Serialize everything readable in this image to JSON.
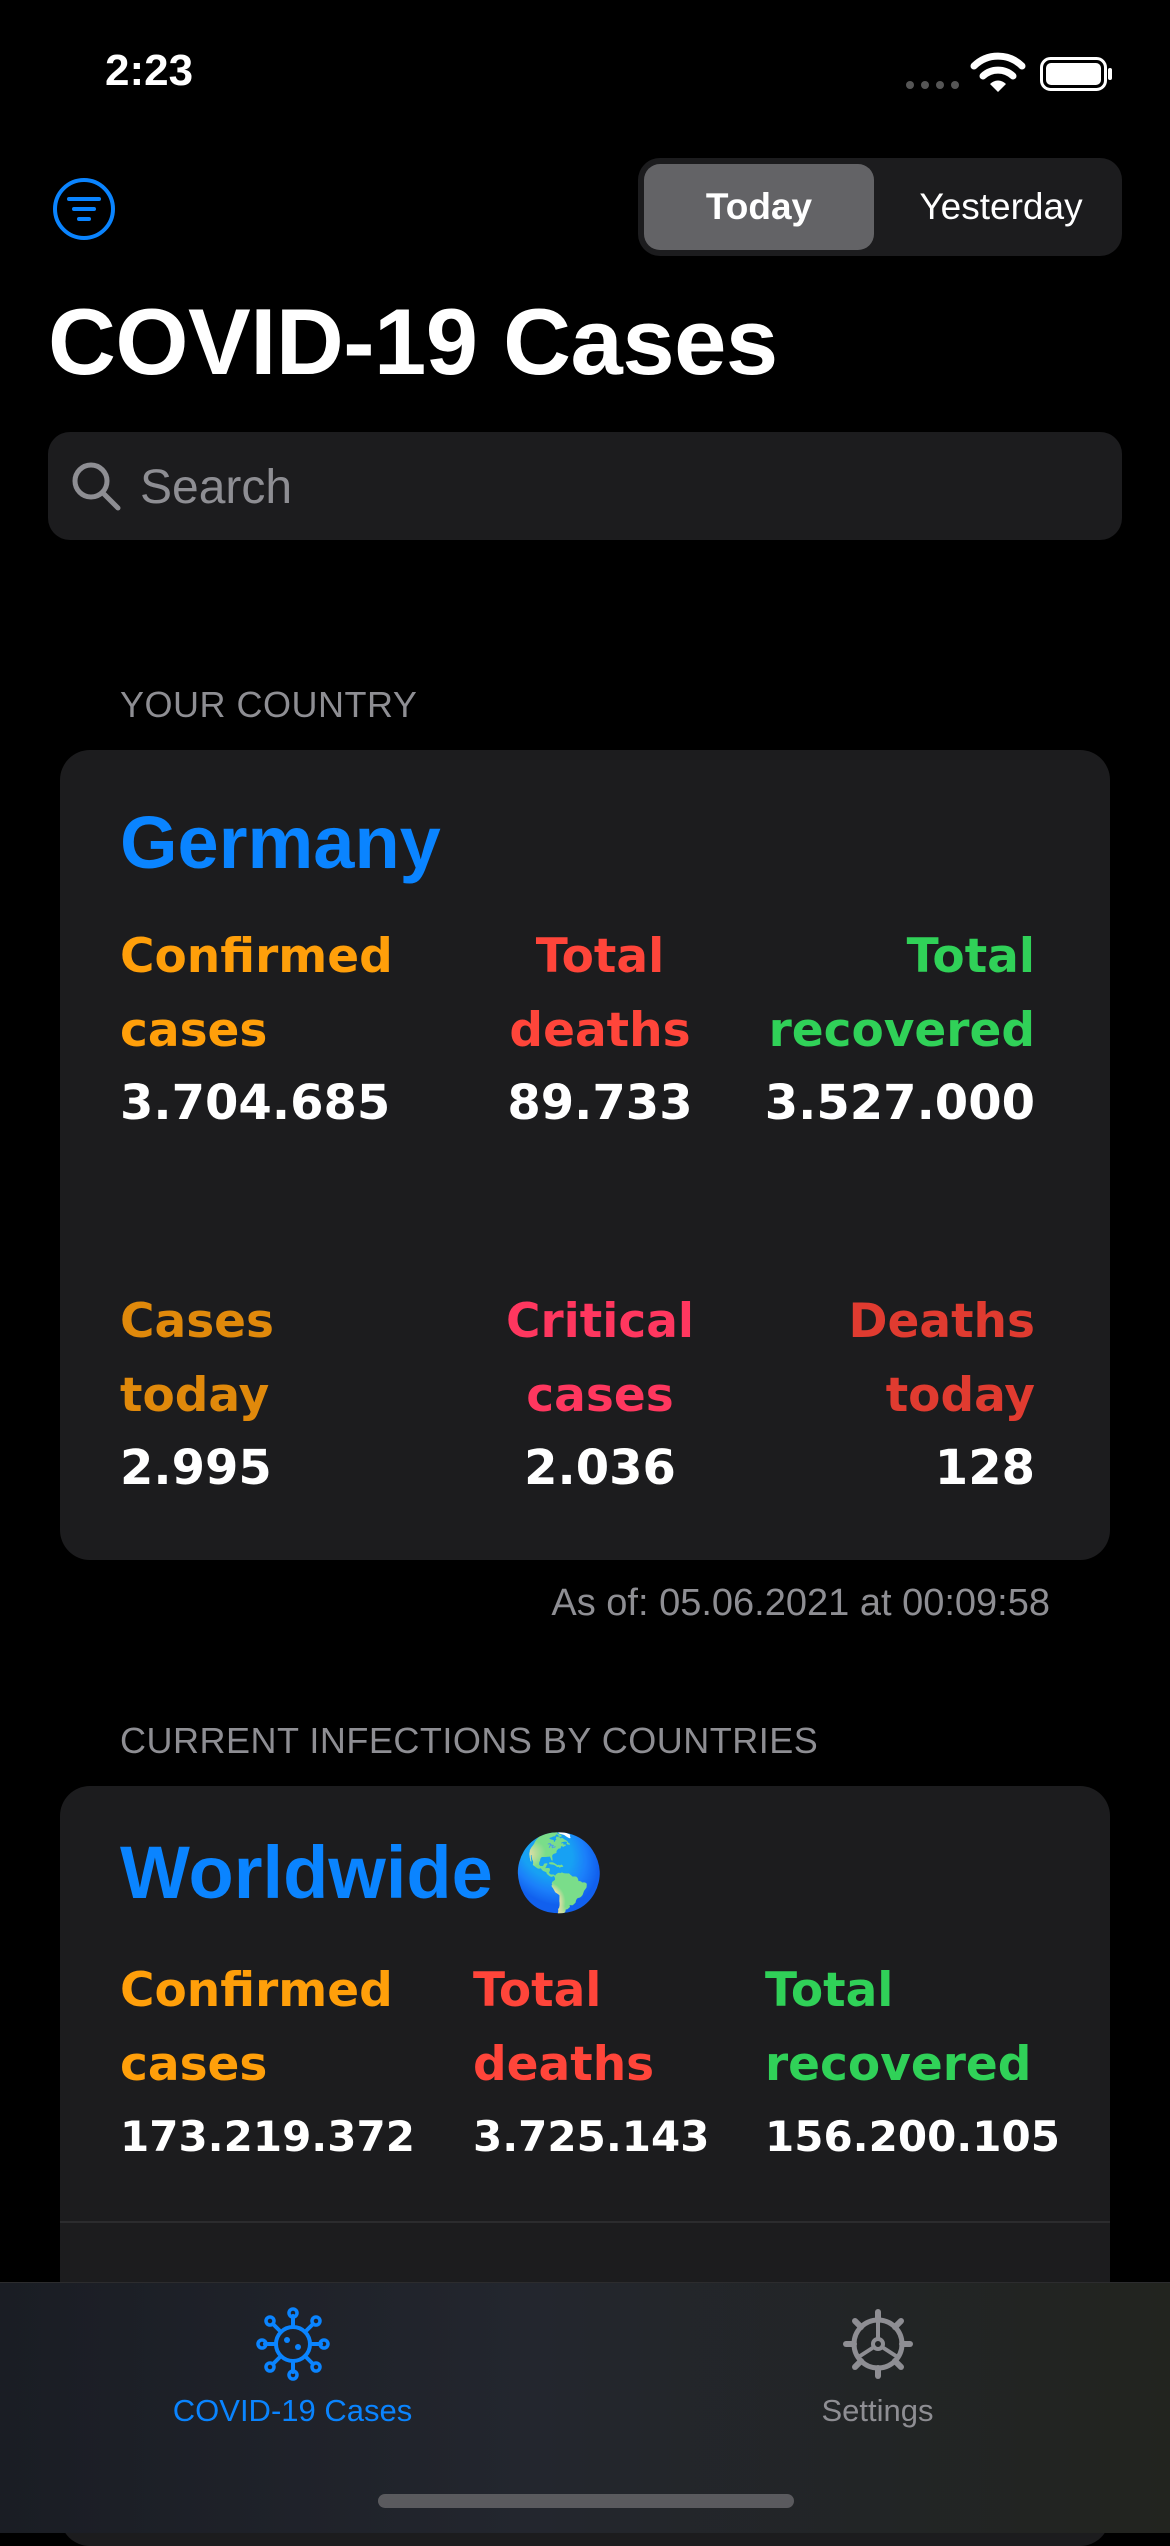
{
  "status_bar": {
    "time": "2:23"
  },
  "header": {
    "title": "COVID-19 Cases",
    "segments": [
      "Today",
      "Yesterday"
    ],
    "selected_segment": "Today"
  },
  "search": {
    "placeholder": "Search"
  },
  "your_country": {
    "section_header": "YOUR COUNTRY",
    "country": "Germany",
    "stats": [
      {
        "label_line1": "Confirmed",
        "label_line2": "cases",
        "value": "3.704.685",
        "color": "#ff9f0a"
      },
      {
        "label_line1": "Total",
        "label_line2": "deaths",
        "value": "89.733",
        "color": "#ff453a"
      },
      {
        "label_line1": "Total",
        "label_line2": "recovered",
        "value": "3.527.000",
        "color": "#30d158"
      },
      {
        "label_line1": "Cases",
        "label_line2": "today",
        "value": "2.995",
        "color": "#e0890b"
      },
      {
        "label_line1": "Critical",
        "label_line2": "cases",
        "value": "2.036",
        "color": "#ff375f"
      },
      {
        "label_line1": "Deaths",
        "label_line2": "today",
        "value": "128",
        "color": "#e03b30"
      }
    ],
    "as_of": "As of: 05.06.2021 at 00:09:58"
  },
  "current_infections": {
    "section_header": "CURRENT INFECTIONS BY COUNTRIES",
    "title": "Worldwide 🌎",
    "stats": [
      {
        "label_line1": "Confirmed",
        "label_line2": "cases",
        "value": "173.219.372",
        "color": "#ff9f0a"
      },
      {
        "label_line1": "Total",
        "label_line2": "deaths",
        "value": "3.725.143",
        "color": "#ff453a"
      },
      {
        "label_line1": "Total",
        "label_line2": "recovered",
        "value": "156.200.105",
        "color": "#30d158"
      }
    ]
  },
  "tab_bar": {
    "tabs": [
      {
        "label": "COVID-19 Cases",
        "icon": "virus-icon",
        "active": true
      },
      {
        "label": "Settings",
        "icon": "gear-icon",
        "active": false
      }
    ],
    "accent": "#0a84ff"
  }
}
